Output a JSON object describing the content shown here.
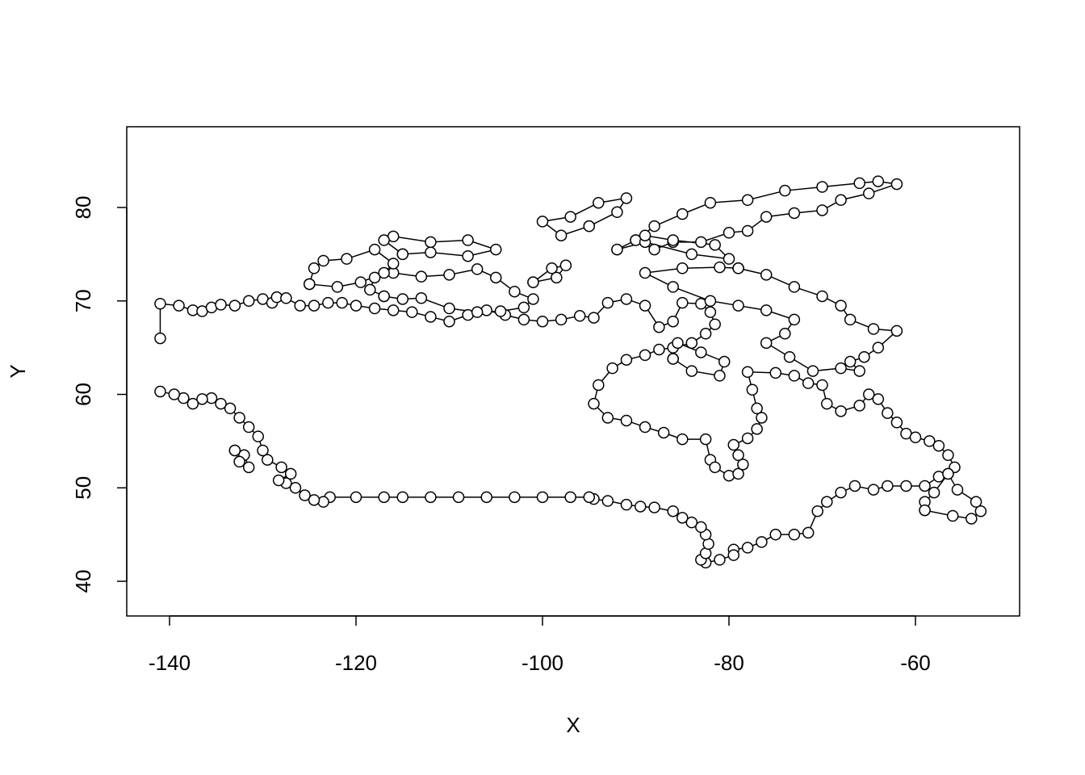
{
  "chart_data": {
    "type": "line",
    "xlabel": "X",
    "ylabel": "Y",
    "color": "#000000",
    "marker": "open-circle",
    "xlim": [
      -144.59,
      -48.83
    ],
    "ylim": [
      36.29,
      88.64
    ],
    "xticks": [
      -140,
      -120,
      -100,
      -80,
      -60
    ],
    "yticks": [
      40,
      50,
      60,
      70,
      80
    ],
    "x": [
      -141,
      -141,
      -139,
      -137.5,
      -136.5,
      -135.5,
      -134.5,
      -133,
      -131.5,
      -130,
      -129,
      -128.5,
      -127.5,
      -126,
      -124.5,
      -123,
      -121.5,
      -120,
      -118,
      -116,
      -114,
      -112,
      -110,
      -108,
      -106,
      -104,
      -102,
      -100,
      -98,
      -96,
      -94.5,
      -93,
      -91,
      -89,
      -87.5,
      -86,
      -85,
      -83,
      -82,
      -81.5,
      -82.5,
      -84,
      -86,
      -87.5,
      -89,
      -91,
      -92.5,
      -94,
      -94.5,
      -93,
      -91,
      -89,
      -87,
      -85,
      -82.5,
      -82,
      -81.5,
      -80,
      -79,
      -78.5,
      -79,
      -79.5,
      -78,
      -77,
      -76.5,
      -77,
      -77.5,
      -78,
      -75,
      -73,
      -71.5,
      -70,
      -69.5,
      -68,
      -66,
      -65,
      -64,
      -63,
      -62,
      -61,
      -60,
      -58.5,
      -57.5,
      -56.5,
      -55.8,
      -56.5,
      -57.5,
      -59,
      -61,
      -63,
      -64.5,
      -66.5,
      -68,
      -69.5,
      -70.5,
      -71.5,
      -73,
      -75,
      -76.5,
      -78,
      -79.5,
      -79.5,
      -81,
      -82.5,
      -83,
      -82.5,
      -82.2,
      -82.5,
      -83,
      -84,
      -85,
      -86,
      -88,
      -89.5,
      -91,
      -93,
      -94.5,
      -95,
      -97,
      -100,
      -103,
      -106,
      -109,
      -112,
      -115,
      -117,
      -120,
      -122.8,
      -123.5,
      -124.5,
      -125.5,
      -126.5,
      -127.5,
      -128.3,
      -127,
      -128,
      -129.5,
      -130,
      -130.5,
      -131.5,
      -132.5,
      -133.5,
      -134.5,
      -135.5,
      -136.5,
      -137.5,
      -138.5,
      -139.5,
      -141,
      null,
      -117,
      -115,
      -113,
      -110,
      -107,
      -104.5,
      -102,
      -101,
      -103,
      -105,
      -107,
      -110,
      -113,
      -116,
      -118,
      -118.5,
      -117,
      null,
      -125,
      -124.5,
      -123.5,
      -121,
      -118,
      -116,
      -117,
      -119.5,
      -122,
      -125,
      null,
      -79,
      -76,
      -73,
      -70,
      -68,
      -67,
      -64.5,
      -62,
      -64,
      -65.5,
      -67,
      -66,
      -68,
      -71,
      -73.5,
      -76,
      -74,
      -73,
      -76,
      -79,
      -82,
      -86,
      -89,
      -85,
      -81,
      -79,
      null,
      -90,
      -88,
      -85,
      -82,
      -78,
      -74,
      -70,
      -66,
      -64,
      -62,
      -65,
      -68,
      -70,
      -73,
      -76,
      -78,
      -80,
      -83,
      -86,
      -88,
      -90,
      null,
      -92,
      -89,
      -84,
      -80,
      -81.5,
      -86,
      -89,
      -92,
      null,
      -115,
      -112,
      -108,
      -105,
      -108,
      -112,
      -116,
      -117,
      -115,
      null,
      -95,
      -92,
      -91,
      -94,
      -97,
      -100,
      -98,
      -95,
      null,
      -86,
      -84,
      -81,
      -80.5,
      -83,
      -85.5,
      -86,
      null,
      -101,
      -99,
      -97.5,
      -98.5,
      -101,
      null,
      -59,
      -56,
      -54,
      -53,
      -53.5,
      -55.5,
      -56.5,
      -58,
      -59,
      -59,
      null,
      -133,
      -132,
      -131.5,
      -132.5,
      -133
    ],
    "values": [
      66,
      69.7,
      69.5,
      69,
      68.9,
      69.3,
      69.6,
      69.5,
      70,
      70.2,
      69.8,
      70.4,
      70.3,
      69.5,
      69.5,
      69.8,
      69.8,
      69.5,
      69.2,
      69,
      68.8,
      68.3,
      67.8,
      68.5,
      69,
      68.5,
      68,
      67.8,
      68,
      68.4,
      68.2,
      69.8,
      70.2,
      69.5,
      67.2,
      67.8,
      69.8,
      69.7,
      68.8,
      67.5,
      66.5,
      65.5,
      65,
      64.8,
      64.2,
      63.7,
      62.8,
      61,
      59,
      57.5,
      57.2,
      56.5,
      55.9,
      55.2,
      55.2,
      53,
      52.2,
      51.3,
      51.5,
      52.5,
      53.5,
      54.6,
      55.3,
      56.3,
      57.5,
      58.5,
      60.5,
      62.4,
      62.3,
      62,
      61.2,
      61,
      59,
      58.2,
      58.8,
      60,
      59.5,
      58,
      57,
      55.8,
      55.4,
      55,
      54.5,
      53.5,
      52.2,
      51.5,
      51.2,
      50.2,
      50.2,
      50.2,
      49.8,
      50.2,
      49.5,
      48.5,
      47.5,
      45.2,
      45,
      45,
      44.2,
      43.6,
      43.4,
      42.8,
      42.3,
      42,
      42.3,
      43,
      44,
      45,
      45.8,
      46.3,
      46.8,
      47.5,
      47.9,
      48,
      48.2,
      48.6,
      48.8,
      49,
      49,
      49,
      49,
      49,
      49,
      49,
      49,
      49,
      49,
      49,
      48.5,
      48.7,
      49.2,
      50,
      50.5,
      50.8,
      51.5,
      52.2,
      53,
      54,
      55.5,
      56.5,
      57.5,
      58.5,
      59,
      59.6,
      59.5,
      59,
      59.6,
      60,
      60.3,
      null,
      70.5,
      70.2,
      70.3,
      69.2,
      68.8,
      68.9,
      69.3,
      70.2,
      71,
      72.5,
      73.4,
      72.8,
      72.6,
      73,
      72.5,
      71.2,
      70.5,
      null,
      71.8,
      73.5,
      74.3,
      74.5,
      75.5,
      74,
      73,
      72,
      71.5,
      71.8,
      null,
      73.5,
      72.8,
      71.5,
      70.5,
      69.5,
      68,
      67,
      66.8,
      65,
      64,
      63.5,
      62.5,
      62.8,
      62.5,
      64,
      65.5,
      66.5,
      68,
      69,
      69.5,
      70,
      71.5,
      73,
      73.5,
      73.6,
      73.5,
      null,
      76.5,
      78,
      79.3,
      80.5,
      80.8,
      81.8,
      82.2,
      82.6,
      82.8,
      82.5,
      81.5,
      80.8,
      79.7,
      79.4,
      79,
      77.5,
      77.3,
      76.3,
      76.3,
      75.5,
      76.5,
      null,
      75.5,
      76.3,
      75,
      74.5,
      76,
      76.5,
      77,
      75.5,
      null,
      75,
      75.2,
      74.8,
      75.5,
      76.5,
      76.3,
      76.9,
      76.5,
      75,
      null,
      78,
      79.5,
      81,
      80.5,
      79,
      78.5,
      77,
      78,
      null,
      63.8,
      62.5,
      62,
      63.5,
      64.5,
      65.5,
      63.8,
      null,
      72,
      73.5,
      73.8,
      72.5,
      72,
      null,
      47.6,
      47,
      46.7,
      47.5,
      48.5,
      49.8,
      51.5,
      49.5,
      48.5,
      47.6,
      null,
      54,
      53.5,
      52.2,
      52.8,
      54
    ]
  }
}
